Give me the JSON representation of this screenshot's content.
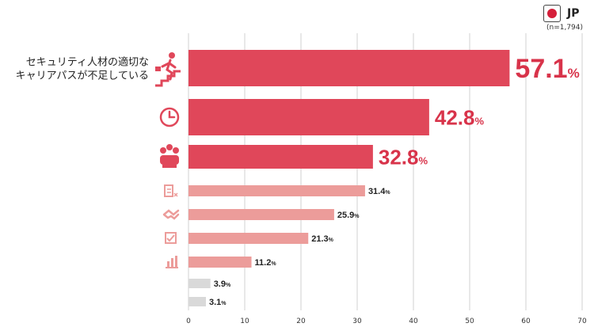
{
  "header": {
    "country": "JP",
    "sample": "n=1,794",
    "flag_color": "#d51f3a"
  },
  "chart_data": {
    "type": "bar",
    "orientation": "horizontal",
    "unit": "%",
    "xlim": [
      0,
      70
    ],
    "x_ticks": [
      0,
      10,
      20,
      30,
      40,
      50,
      60,
      70
    ],
    "grid": "vertical",
    "categories": [
      [
        "セキュリティ人材の適切な",
        "キャリアパスが不足している"
      ],
      [
        "",
        ""
      ],
      [
        "",
        ""
      ],
      [
        ""
      ],
      [
        "",
        ""
      ],
      [
        "",
        ""
      ],
      [
        ""
      ],
      [
        ""
      ],
      [
        ""
      ]
    ],
    "values": [
      57.1,
      42.8,
      32.8,
      31.4,
      25.9,
      21.3,
      11.2,
      3.9,
      3.1
    ],
    "value_labels": [
      "57.1",
      "42.8",
      "32.8",
      "31.4",
      "25.9",
      "21.3",
      "11.2",
      "3.9",
      "3.1"
    ],
    "icons": [
      "stairs-climber-icon",
      "clock-icon",
      "team-icon",
      "document-icon",
      "handshake-icon",
      "checklist-icon",
      "bar-chart-icon",
      "",
      ""
    ],
    "colors": {
      "top": "#e0475a",
      "mid": "#ec9c9a",
      "low": "#d9d9d9",
      "label_top": "#d8334a",
      "label_other": "#222222",
      "grid": "#d0d0d0"
    }
  }
}
